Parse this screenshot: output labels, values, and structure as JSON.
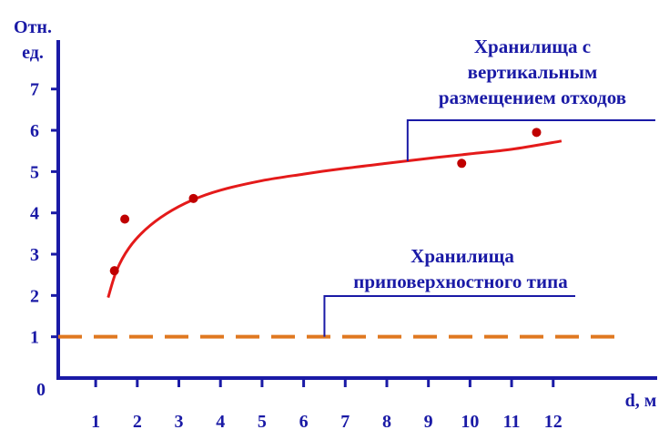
{
  "chart_data": {
    "type": "scatter",
    "ylabel_lines": [
      "Отн.",
      "ед."
    ],
    "xlabel": "d, м",
    "x_ticks": [
      1,
      2,
      3,
      4,
      5,
      6,
      7,
      8,
      9,
      10,
      11,
      12
    ],
    "y_ticks": [
      1,
      2,
      3,
      4,
      5,
      6,
      7
    ],
    "origin_label": "0",
    "xlim": [
      0.1,
      14.5
    ],
    "ylim": [
      0,
      7.7
    ],
    "grid": false,
    "colors": {
      "axis": "#1a1aa6",
      "curve": "#e41a1a",
      "points": "#c00000",
      "reference_line": "#e07820",
      "text": "#1a1aa6"
    },
    "series": [
      {
        "kind": "points",
        "x": [
          1.45,
          1.7,
          3.35,
          9.8,
          11.6
        ],
        "y": [
          2.6,
          3.85,
          4.35,
          5.2,
          5.95
        ]
      },
      {
        "kind": "fit_curve",
        "x": [
          1.3,
          1.5,
          1.8,
          2.2,
          2.7,
          3.3,
          4.0,
          5.0,
          6.0,
          7.0,
          8.0,
          9.0,
          10.0,
          11.0,
          12.2
        ],
        "y": [
          1.95,
          2.6,
          3.15,
          3.6,
          3.98,
          4.3,
          4.55,
          4.78,
          4.94,
          5.08,
          5.2,
          5.32,
          5.43,
          5.54,
          5.74
        ]
      },
      {
        "kind": "reference_line",
        "style": "dashed",
        "x": [
          0.1,
          13.5
        ],
        "y": [
          1.0,
          1.0
        ]
      }
    ],
    "annotations": [
      {
        "id": "vertical",
        "lines": [
          "Хранилища с",
          "вертикальным",
          "размещением отходов"
        ],
        "leader_anchor": {
          "x": 8.5,
          "y": 5.25
        }
      },
      {
        "id": "near-surface",
        "lines": [
          "Хранилища",
          "приповерхностного типа"
        ],
        "leader_anchor": {
          "x": 6.5,
          "y": 1.0
        }
      }
    ]
  }
}
